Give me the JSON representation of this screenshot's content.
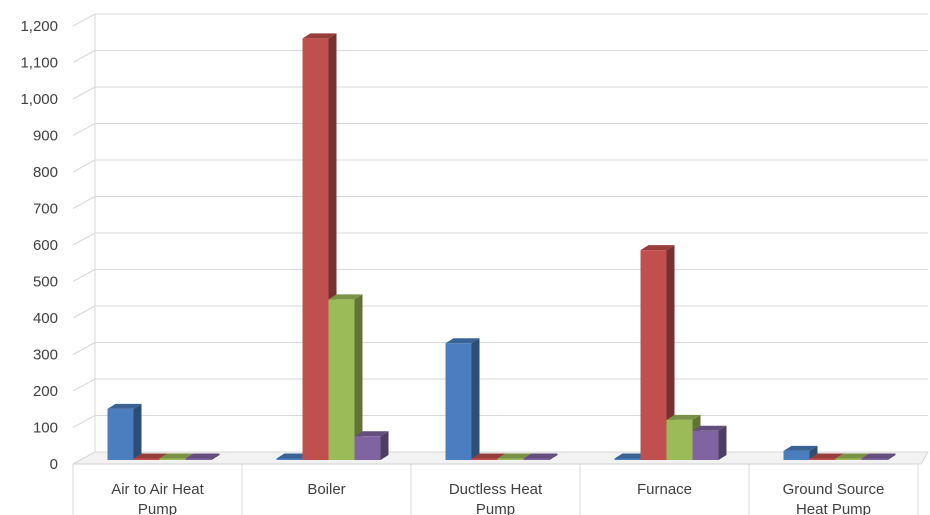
{
  "chart_data": {
    "type": "bar",
    "title": "",
    "xlabel": "",
    "ylabel": "",
    "ylim": [
      0,
      1200
    ],
    "y_ticks": [
      0,
      100,
      200,
      300,
      400,
      500,
      600,
      700,
      800,
      900,
      1000,
      1100,
      1200
    ],
    "y_tick_labels": [
      "0",
      "100",
      "200",
      "300",
      "400",
      "500",
      "600",
      "700",
      "800",
      "900",
      "1,000",
      "1,100",
      "1,200"
    ],
    "grid": true,
    "legend": "none",
    "style": "3d-clustered-column",
    "categories": [
      [
        "Air to Air Heat",
        "Pump"
      ],
      [
        "Boiler"
      ],
      [
        "Ductless Heat",
        "Pump"
      ],
      [
        "Furnace"
      ],
      [
        "Ground Source",
        "Heat Pump"
      ]
    ],
    "series": [
      {
        "color": "#4a7ebf",
        "values": [
          140,
          0,
          320,
          0,
          25
        ]
      },
      {
        "color": "#c0504d",
        "values": [
          0,
          1155,
          0,
          575,
          0
        ]
      },
      {
        "color": "#9bbb59",
        "values": [
          0,
          440,
          0,
          110,
          0
        ]
      },
      {
        "color": "#8064a2",
        "values": [
          0,
          65,
          0,
          80,
          0
        ]
      }
    ]
  }
}
